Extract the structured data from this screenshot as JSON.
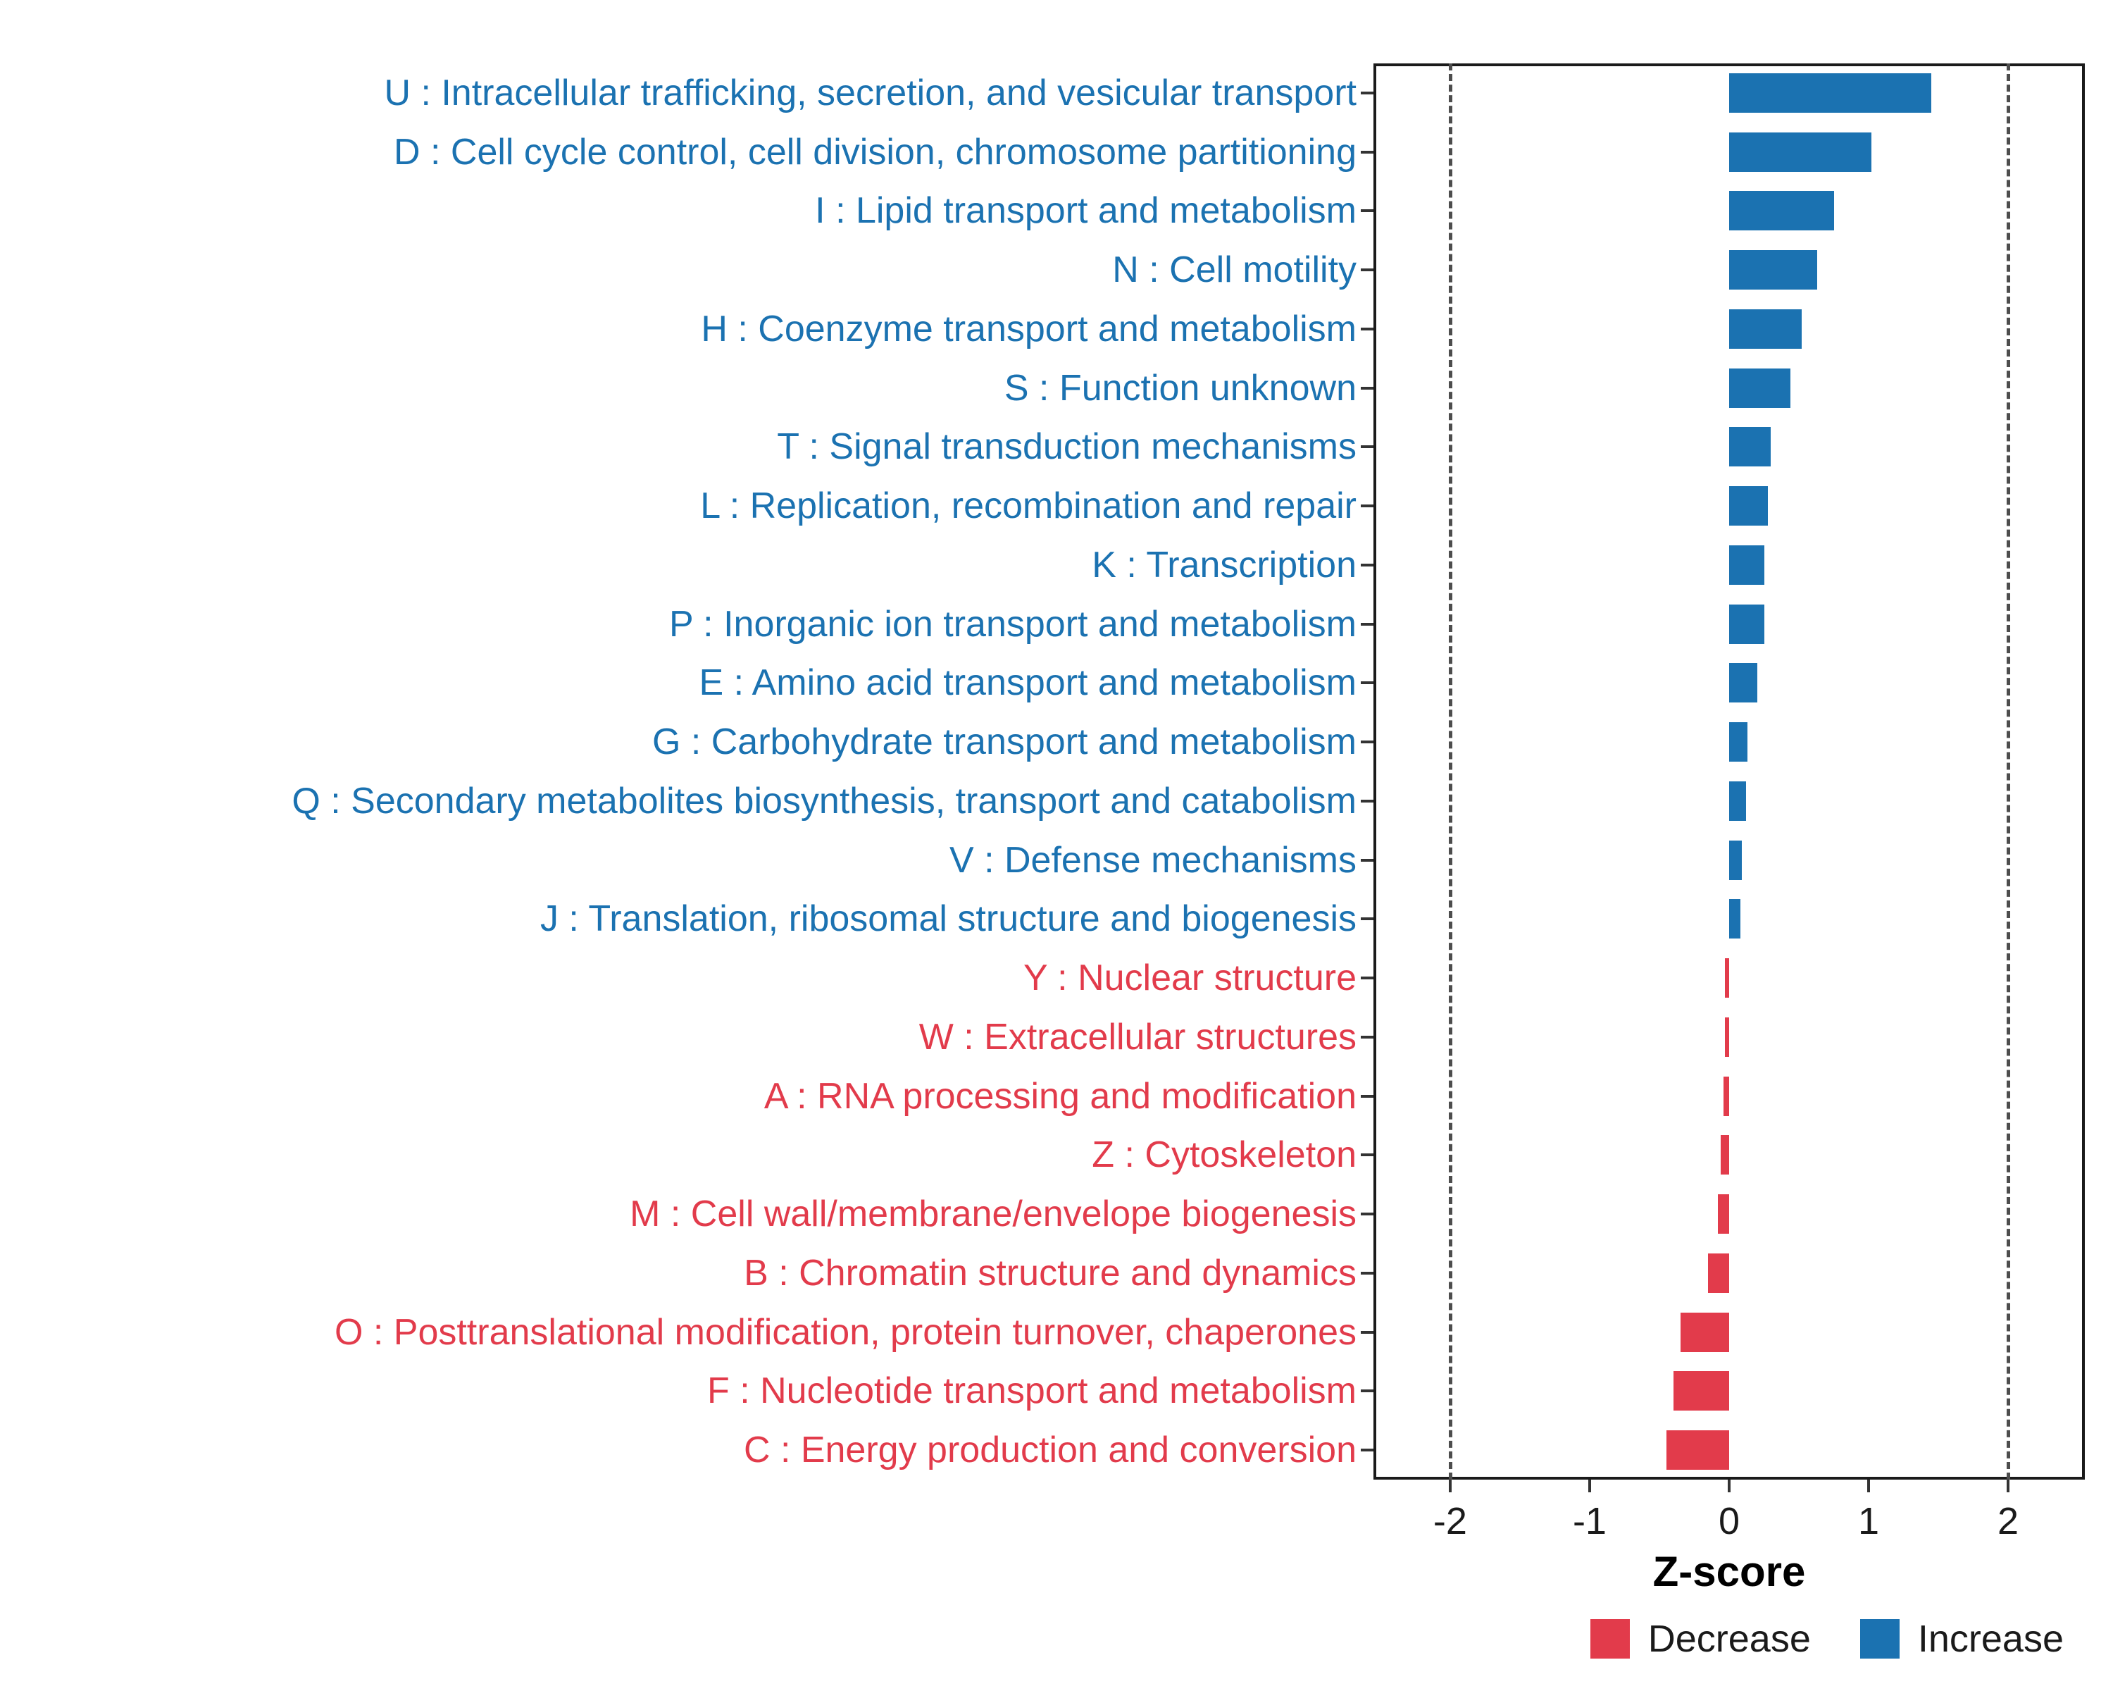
{
  "figure": {
    "background": "#ffffff"
  },
  "chart_data": {
    "type": "bar",
    "orientation": "horizontal",
    "title": "",
    "xlabel": "Z-score",
    "ylabel": "",
    "xlim": [
      -2.55,
      2.55
    ],
    "x_ticks": [
      -2,
      -1,
      0,
      1,
      2
    ],
    "x_tick_labels": [
      "-2",
      "-1",
      "0",
      "1",
      "2"
    ],
    "reference_lines": [
      -2,
      2
    ],
    "grid": "off",
    "legend_position": "bottom-right",
    "colors": {
      "Increase": "#1B72B1",
      "Decrease": "#E23B4B"
    },
    "legend": [
      {
        "label": "Decrease",
        "group": "Decrease"
      },
      {
        "label": "Increase",
        "group": "Increase"
      }
    ],
    "rows": [
      {
        "label": "U : Intracellular trafficking, secretion, and vesicular transport",
        "value": 1.45,
        "group": "Increase"
      },
      {
        "label": "D : Cell cycle control, cell division, chromosome partitioning",
        "value": 1.02,
        "group": "Increase"
      },
      {
        "label": "I : Lipid transport and metabolism",
        "value": 0.75,
        "group": "Increase"
      },
      {
        "label": "N : Cell motility",
        "value": 0.63,
        "group": "Increase"
      },
      {
        "label": "H : Coenzyme transport and metabolism",
        "value": 0.52,
        "group": "Increase"
      },
      {
        "label": "S : Function unknown",
        "value": 0.44,
        "group": "Increase"
      },
      {
        "label": "T : Signal transduction mechanisms",
        "value": 0.3,
        "group": "Increase"
      },
      {
        "label": "L : Replication, recombination and repair",
        "value": 0.28,
        "group": "Increase"
      },
      {
        "label": "K : Transcription",
        "value": 0.25,
        "group": "Increase"
      },
      {
        "label": "P : Inorganic ion transport and metabolism",
        "value": 0.25,
        "group": "Increase"
      },
      {
        "label": "E : Amino acid transport and metabolism",
        "value": 0.2,
        "group": "Increase"
      },
      {
        "label": "G : Carbohydrate transport and metabolism",
        "value": 0.13,
        "group": "Increase"
      },
      {
        "label": "Q : Secondary metabolites biosynthesis, transport and catabolism",
        "value": 0.12,
        "group": "Increase"
      },
      {
        "label": "V : Defense mechanisms",
        "value": 0.09,
        "group": "Increase"
      },
      {
        "label": "J : Translation, ribosomal structure and biogenesis",
        "value": 0.08,
        "group": "Increase"
      },
      {
        "label": "Y : Nuclear structure",
        "value": -0.03,
        "group": "Decrease"
      },
      {
        "label": "W : Extracellular structures",
        "value": -0.03,
        "group": "Decrease"
      },
      {
        "label": "A : RNA processing and modification",
        "value": -0.04,
        "group": "Decrease"
      },
      {
        "label": "Z : Cytoskeleton",
        "value": -0.06,
        "group": "Decrease"
      },
      {
        "label": "M : Cell wall/membrane/envelope biogenesis",
        "value": -0.08,
        "group": "Decrease"
      },
      {
        "label": "B : Chromatin structure and dynamics",
        "value": -0.15,
        "group": "Decrease"
      },
      {
        "label": "O : Posttranslational modification, protein turnover, chaperones",
        "value": -0.35,
        "group": "Decrease"
      },
      {
        "label": "F : Nucleotide transport and metabolism",
        "value": -0.4,
        "group": "Decrease"
      },
      {
        "label": "C : Energy production and conversion",
        "value": -0.45,
        "group": "Decrease"
      }
    ]
  }
}
